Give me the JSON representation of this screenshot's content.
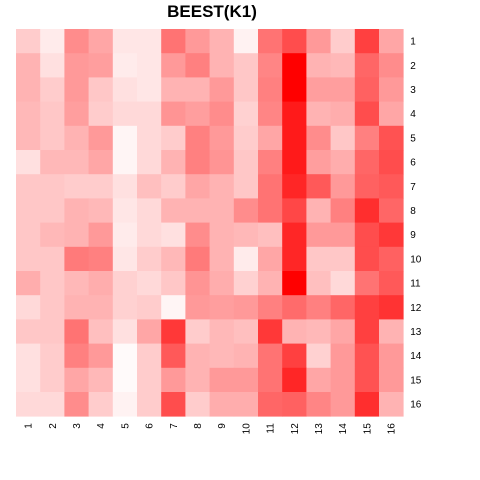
{
  "chart_data": {
    "type": "heatmap",
    "title": "BEEST(K1)",
    "row_labels": [
      "1",
      "2",
      "3",
      "4",
      "5",
      "6",
      "7",
      "8",
      "9",
      "10",
      "11",
      "12",
      "13",
      "14",
      "15",
      "16"
    ],
    "col_labels": [
      "1",
      "2",
      "3",
      "4",
      "5",
      "6",
      "7",
      "8",
      "9",
      "10",
      "11",
      "12",
      "13",
      "14",
      "15",
      "16"
    ],
    "color_scale": {
      "low": "#ffffff",
      "high": "#ff0000"
    },
    "value_range": [
      0,
      1
    ],
    "values": [
      [
        0.2,
        0.08,
        0.45,
        0.35,
        0.1,
        0.1,
        0.55,
        0.4,
        0.3,
        0.05,
        0.55,
        0.7,
        0.4,
        0.2,
        0.75,
        0.35
      ],
      [
        0.3,
        0.12,
        0.4,
        0.38,
        0.08,
        0.1,
        0.4,
        0.5,
        0.3,
        0.22,
        0.48,
        1.0,
        0.3,
        0.28,
        0.6,
        0.45
      ],
      [
        0.3,
        0.2,
        0.4,
        0.22,
        0.12,
        0.1,
        0.3,
        0.3,
        0.4,
        0.22,
        0.5,
        1.0,
        0.38,
        0.38,
        0.62,
        0.4
      ],
      [
        0.28,
        0.22,
        0.38,
        0.2,
        0.15,
        0.15,
        0.42,
        0.38,
        0.45,
        0.18,
        0.48,
        0.9,
        0.3,
        0.32,
        0.7,
        0.35
      ],
      [
        0.28,
        0.22,
        0.3,
        0.4,
        0.04,
        0.15,
        0.2,
        0.5,
        0.4,
        0.2,
        0.35,
        0.9,
        0.45,
        0.22,
        0.5,
        0.68
      ],
      [
        0.12,
        0.28,
        0.28,
        0.35,
        0.04,
        0.15,
        0.3,
        0.5,
        0.42,
        0.22,
        0.5,
        0.9,
        0.38,
        0.32,
        0.6,
        0.7
      ],
      [
        0.22,
        0.22,
        0.2,
        0.2,
        0.12,
        0.25,
        0.2,
        0.35,
        0.3,
        0.22,
        0.55,
        0.85,
        0.65,
        0.4,
        0.62,
        0.65
      ],
      [
        0.22,
        0.22,
        0.3,
        0.28,
        0.1,
        0.15,
        0.3,
        0.3,
        0.3,
        0.45,
        0.55,
        0.72,
        0.3,
        0.5,
        0.82,
        0.6
      ],
      [
        0.22,
        0.28,
        0.3,
        0.4,
        0.08,
        0.15,
        0.12,
        0.45,
        0.3,
        0.28,
        0.25,
        0.85,
        0.4,
        0.4,
        0.7,
        0.78
      ],
      [
        0.22,
        0.22,
        0.52,
        0.5,
        0.1,
        0.2,
        0.28,
        0.52,
        0.3,
        0.08,
        0.35,
        0.85,
        0.22,
        0.22,
        0.7,
        0.62
      ],
      [
        0.32,
        0.22,
        0.28,
        0.32,
        0.18,
        0.15,
        0.22,
        0.42,
        0.32,
        0.18,
        0.3,
        1.0,
        0.25,
        0.15,
        0.55,
        0.65
      ],
      [
        0.15,
        0.22,
        0.3,
        0.3,
        0.18,
        0.2,
        0.04,
        0.4,
        0.38,
        0.4,
        0.5,
        0.58,
        0.5,
        0.6,
        0.75,
        0.8
      ],
      [
        0.22,
        0.22,
        0.55,
        0.25,
        0.12,
        0.35,
        0.78,
        0.2,
        0.28,
        0.25,
        0.78,
        0.3,
        0.28,
        0.35,
        0.75,
        0.3
      ],
      [
        0.12,
        0.2,
        0.5,
        0.4,
        0.02,
        0.2,
        0.65,
        0.3,
        0.28,
        0.3,
        0.55,
        0.75,
        0.18,
        0.4,
        0.68,
        0.4
      ],
      [
        0.12,
        0.2,
        0.35,
        0.28,
        0.02,
        0.2,
        0.4,
        0.3,
        0.4,
        0.4,
        0.55,
        0.85,
        0.35,
        0.4,
        0.68,
        0.4
      ],
      [
        0.15,
        0.15,
        0.45,
        0.2,
        0.05,
        0.2,
        0.7,
        0.2,
        0.32,
        0.32,
        0.6,
        0.62,
        0.48,
        0.4,
        0.82,
        0.3
      ]
    ]
  }
}
